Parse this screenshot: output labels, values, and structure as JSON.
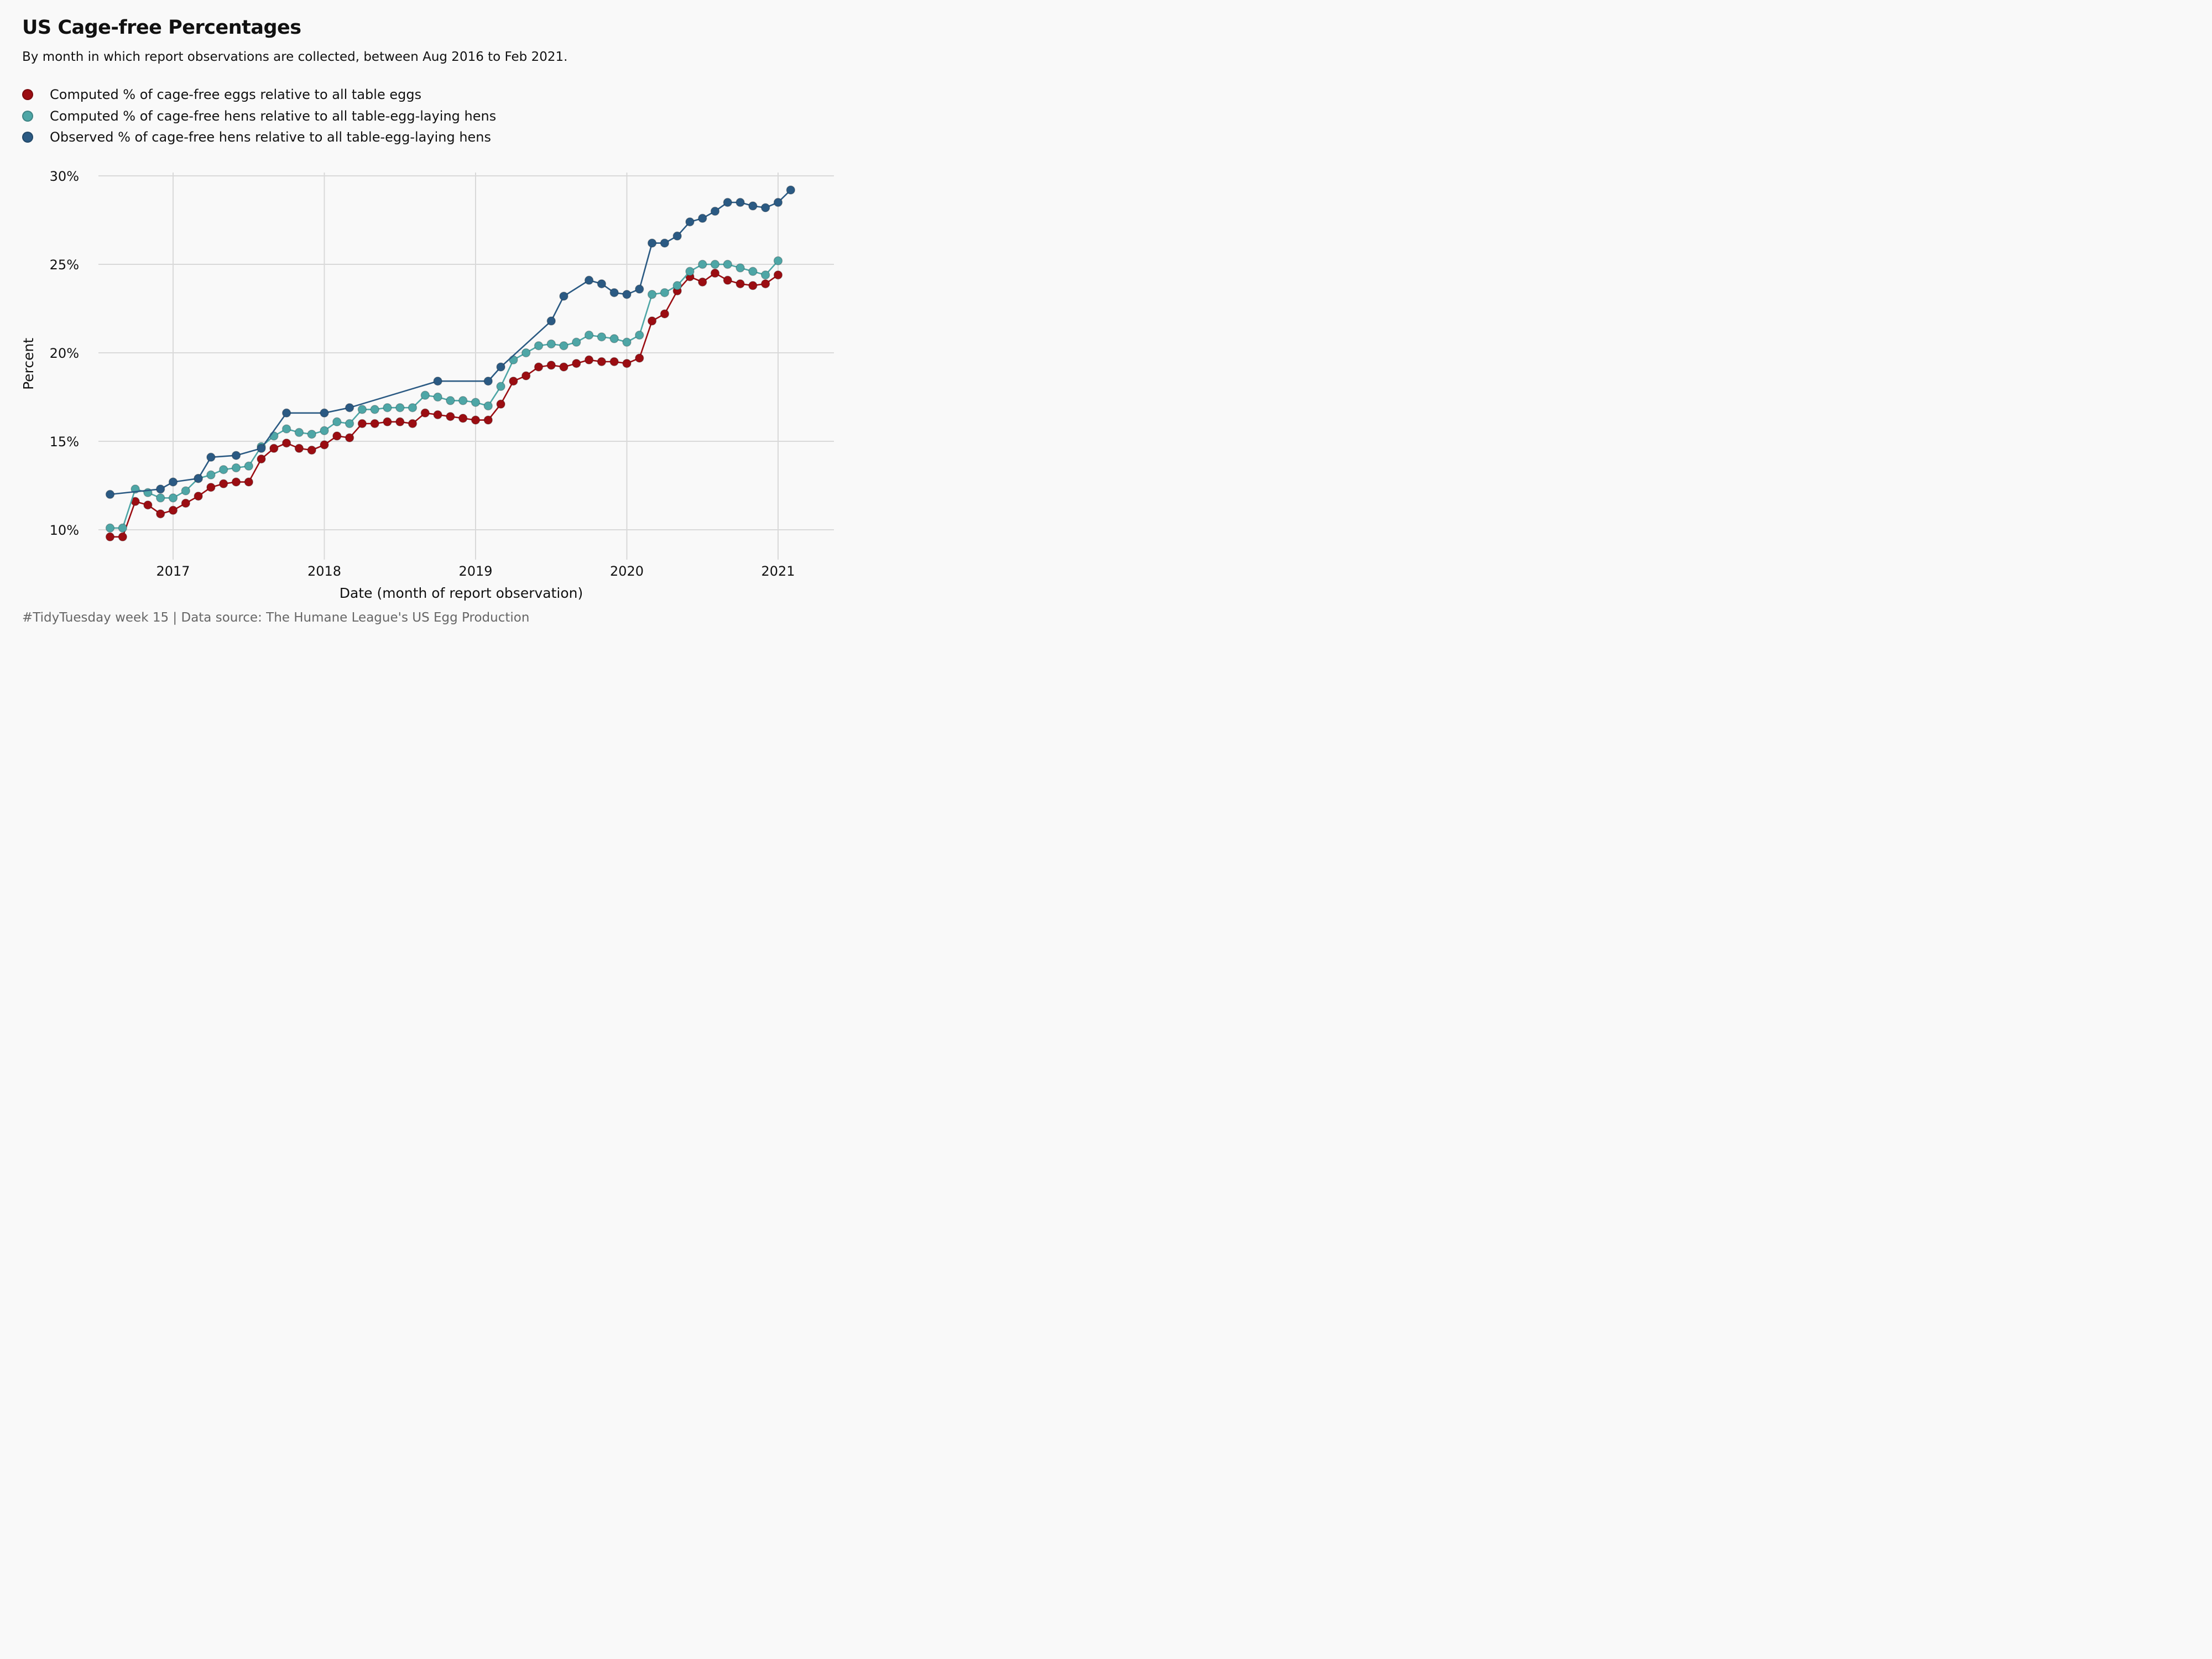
{
  "title": "US Cage-free Percentages",
  "subtitle": "By month in which report observations are collected, between Aug 2016 to Feb 2021.",
  "caption": "#TidyTuesday week 15 | Data source: The Humane League's US Egg Production",
  "colors": {
    "eggs": "#9b0d12",
    "hens": "#4ea6a6",
    "observed": "#2b5a83",
    "grid": "#d9d9d9",
    "background": "#f9f9f9"
  },
  "chart_data": {
    "type": "line",
    "title": "US Cage-free Percentages",
    "subtitle": "By month in which report observations are collected, between Aug 2016 to Feb 2021.",
    "xlabel": "Date (month of report observation)",
    "ylabel": "Percent",
    "x_ticks": [
      "2017",
      "2018",
      "2019",
      "2020",
      "2021"
    ],
    "y_ticks": [
      "10%",
      "15%",
      "20%",
      "25%",
      "30%"
    ],
    "ylim": [
      10,
      30
    ],
    "xlim": [
      "2016-08",
      "2021-02"
    ],
    "grid": true,
    "legend_position": "top-left",
    "series": [
      {
        "name": "Computed % of cage-free eggs relative to all table eggs",
        "color": "#9b0d12",
        "x": [
          "2016-08",
          "2016-09",
          "2016-10",
          "2016-11",
          "2016-12",
          "2017-01",
          "2017-02",
          "2017-03",
          "2017-04",
          "2017-05",
          "2017-06",
          "2017-07",
          "2017-08",
          "2017-09",
          "2017-10",
          "2017-11",
          "2017-12",
          "2018-01",
          "2018-02",
          "2018-03",
          "2018-04",
          "2018-05",
          "2018-06",
          "2018-07",
          "2018-08",
          "2018-09",
          "2018-10",
          "2018-11",
          "2018-12",
          "2019-01",
          "2019-02",
          "2019-03",
          "2019-04",
          "2019-05",
          "2019-06",
          "2019-07",
          "2019-08",
          "2019-09",
          "2019-10",
          "2019-11",
          "2019-12",
          "2020-01",
          "2020-02",
          "2020-03",
          "2020-04",
          "2020-05",
          "2020-06",
          "2020-07",
          "2020-08",
          "2020-09",
          "2020-10",
          "2020-11",
          "2020-12",
          "2021-01"
        ],
        "values": [
          9.6,
          9.6,
          11.6,
          11.4,
          10.9,
          11.1,
          11.5,
          11.9,
          12.4,
          12.6,
          12.7,
          12.7,
          14.0,
          14.6,
          14.9,
          14.6,
          14.5,
          14.8,
          15.3,
          15.2,
          16.0,
          16.0,
          16.1,
          16.1,
          16.0,
          16.6,
          16.5,
          16.4,
          16.3,
          16.2,
          16.2,
          17.1,
          18.4,
          18.7,
          19.2,
          19.3,
          19.2,
          19.4,
          19.6,
          19.5,
          19.5,
          19.4,
          19.7,
          21.8,
          22.2,
          23.5,
          24.3,
          24.0,
          24.5,
          24.1,
          23.9,
          23.8,
          23.9,
          24.4
        ]
      },
      {
        "name": "Computed % of cage-free hens relative to all table-egg-laying hens",
        "color": "#4ea6a6",
        "x": [
          "2016-08",
          "2016-09",
          "2016-10",
          "2016-11",
          "2016-12",
          "2017-01",
          "2017-02",
          "2017-03",
          "2017-04",
          "2017-05",
          "2017-06",
          "2017-07",
          "2017-08",
          "2017-09",
          "2017-10",
          "2017-11",
          "2017-12",
          "2018-01",
          "2018-02",
          "2018-03",
          "2018-04",
          "2018-05",
          "2018-06",
          "2018-07",
          "2018-08",
          "2018-09",
          "2018-10",
          "2018-11",
          "2018-12",
          "2019-01",
          "2019-02",
          "2019-03",
          "2019-04",
          "2019-05",
          "2019-06",
          "2019-07",
          "2019-08",
          "2019-09",
          "2019-10",
          "2019-11",
          "2019-12",
          "2020-01",
          "2020-02",
          "2020-03",
          "2020-04",
          "2020-05",
          "2020-06",
          "2020-07",
          "2020-08",
          "2020-09",
          "2020-10",
          "2020-11",
          "2020-12",
          "2021-01"
        ],
        "values": [
          10.1,
          10.1,
          12.3,
          12.1,
          11.8,
          11.8,
          12.2,
          12.9,
          13.1,
          13.4,
          13.5,
          13.6,
          14.7,
          15.3,
          15.7,
          15.5,
          15.4,
          15.6,
          16.1,
          16.0,
          16.8,
          16.8,
          16.9,
          16.9,
          16.9,
          17.6,
          17.5,
          17.3,
          17.3,
          17.2,
          17.0,
          18.1,
          19.6,
          20.0,
          20.4,
          20.5,
          20.4,
          20.6,
          21.0,
          20.9,
          20.8,
          20.6,
          21.0,
          23.3,
          23.4,
          23.8,
          24.6,
          25.0,
          25.0,
          25.0,
          24.8,
          24.6,
          24.4,
          25.2
        ]
      },
      {
        "name": "Observed % of cage-free hens relative to all table-egg-laying hens",
        "color": "#2b5a83",
        "x": [
          "2016-08",
          "2016-12",
          "2017-01",
          "2017-03",
          "2017-04",
          "2017-06",
          "2017-08",
          "2017-10",
          "2018-01",
          "2018-03",
          "2018-10",
          "2019-02",
          "2019-03",
          "2019-07",
          "2019-08",
          "2019-10",
          "2019-11",
          "2019-12",
          "2020-01",
          "2020-02",
          "2020-03",
          "2020-04",
          "2020-05",
          "2020-06",
          "2020-07",
          "2020-08",
          "2020-09",
          "2020-10",
          "2020-11",
          "2020-12",
          "2021-01",
          "2021-02"
        ],
        "values": [
          12.0,
          12.3,
          12.7,
          12.9,
          14.1,
          14.2,
          14.6,
          16.6,
          16.6,
          16.9,
          18.4,
          18.4,
          19.2,
          21.8,
          23.2,
          24.1,
          23.9,
          23.4,
          23.3,
          23.6,
          26.2,
          26.2,
          26.6,
          27.4,
          27.6,
          28.0,
          28.5,
          28.5,
          28.3,
          28.2,
          28.5,
          29.2
        ]
      }
    ]
  }
}
